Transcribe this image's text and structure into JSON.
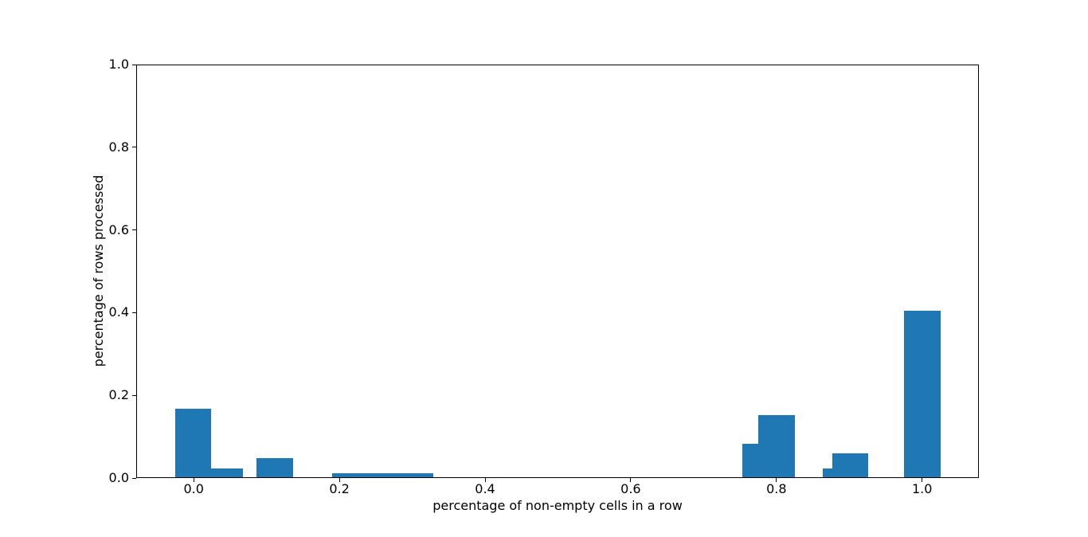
{
  "chart_data": {
    "type": "bar",
    "subtype": "histogram",
    "title": "",
    "xlabel": "percentage of non-empty cells in a row",
    "ylabel": "percentage of rows processed",
    "x_ticks": [
      "0.0",
      "0.2",
      "0.4",
      "0.6",
      "0.8",
      "1.0"
    ],
    "y_ticks": [
      "0.0",
      "0.2",
      "0.4",
      "0.6",
      "0.8",
      "1.0"
    ],
    "xlim": [
      -0.079,
      1.078
    ],
    "ylim": [
      0,
      1
    ],
    "grid": false,
    "legend": false,
    "bar_color": "#1f77b4",
    "axis_color": "#000000",
    "background_color": "#ffffff",
    "bars": [
      {
        "x_left": -0.026,
        "x_right": 0.024,
        "height": 0.168
      },
      {
        "x_left": 0.024,
        "x_right": 0.068,
        "height": 0.023
      },
      {
        "x_left": 0.086,
        "x_right": 0.136,
        "height": 0.048
      },
      {
        "x_left": 0.19,
        "x_right": 0.329,
        "height": 0.012
      },
      {
        "x_left": 0.753,
        "x_right": 0.775,
        "height": 0.082
      },
      {
        "x_left": 0.775,
        "x_right": 0.825,
        "height": 0.153
      },
      {
        "x_left": 0.864,
        "x_right": 0.877,
        "height": 0.023
      },
      {
        "x_left": 0.877,
        "x_right": 0.926,
        "height": 0.06
      },
      {
        "x_left": 0.975,
        "x_right": 1.026,
        "height": 0.404
      }
    ]
  }
}
